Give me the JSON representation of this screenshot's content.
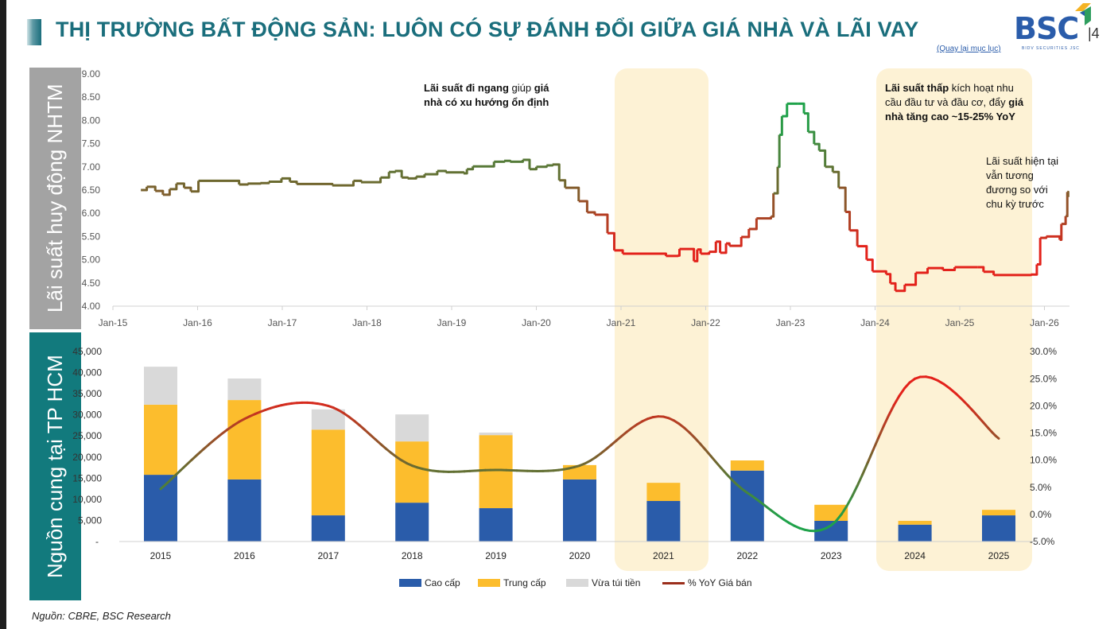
{
  "header": {
    "title": "THỊ TRƯỜNG BẤT ĐỘNG SẢN: LUÔN CÓ SỰ ĐÁNH ĐỔI GIỮA GIÁ NHÀ VÀ LÃI VAY",
    "logo_text": "BSC",
    "logo_sub": "BIDV SECURITIES JSC",
    "page_number": "|4",
    "back_link": "(Quay lại mục lục)"
  },
  "side_labels": {
    "top": "Lãi suất huy động NHTM",
    "bottom": "Nguồn cung tại TP HCM"
  },
  "annotations": {
    "a1_bold": "Lãi suất đi ngang",
    "a1_rest1": " giúp",
    "a1_bold2": "giá nhà có xu hướng ổn định",
    "a2_bold": "Lãi suất thấp",
    "a2_rest": " kích hoạt nhu cầu đầu tư và đầu cơ, đẩy ",
    "a2_bold2": "giá nhà tăng cao ~15-25% YoY",
    "a3": "Lãi suất hiện tại vẫn tương đương so với chu kỳ trước"
  },
  "source": "Nguồn: CBRE, BSC Research",
  "colors": {
    "title": "#1a6e7c",
    "cao_cap": "#2a5caa",
    "trung_cap": "#fcbd2d",
    "vua_tui_tien": "#d9d9d9",
    "highlight": "#fdf2d5",
    "red": "#e3221b",
    "olive": "#6b6a30",
    "green": "#1fa24a"
  },
  "chart_data": [
    {
      "type": "line",
      "title": "Lãi suất huy động NHTM",
      "ylabel": "Lãi suất huy động NHTM",
      "ylim": [
        4.0,
        9.0
      ],
      "yticks": [
        "4.00",
        "4.50",
        "5.00",
        "5.50",
        "6.00",
        "6.50",
        "7.00",
        "7.50",
        "8.00",
        "8.50",
        "9.00"
      ],
      "xticks": [
        "Jan-15",
        "Jan-16",
        "Jan-17",
        "Jan-18",
        "Jan-19",
        "Jan-20",
        "Jan-21",
        "Jan-22",
        "Jan-23",
        "Jan-24",
        "Jan-25",
        "Jan-26"
      ],
      "xlim": [
        2015.0,
        2026.3
      ],
      "highlights": [
        [
          2020.9,
          2022.0
        ],
        [
          2024.0,
          2025.85
        ]
      ],
      "series": [
        {
          "name": "Lãi suất huy động",
          "step": true,
          "points": [
            [
              2015.33,
              6.5
            ],
            [
              2015.4,
              6.57
            ],
            [
              2015.5,
              6.48
            ],
            [
              2015.59,
              6.4
            ],
            [
              2015.67,
              6.52
            ],
            [
              2015.75,
              6.64
            ],
            [
              2015.84,
              6.55
            ],
            [
              2015.92,
              6.47
            ],
            [
              2016.01,
              6.7
            ],
            [
              2016.49,
              6.62
            ],
            [
              2016.59,
              6.64
            ],
            [
              2016.74,
              6.65
            ],
            [
              2016.84,
              6.68
            ],
            [
              2016.99,
              6.75
            ],
            [
              2017.09,
              6.68
            ],
            [
              2017.17,
              6.63
            ],
            [
              2017.59,
              6.6
            ],
            [
              2017.84,
              6.7
            ],
            [
              2017.93,
              6.67
            ],
            [
              2018.16,
              6.77
            ],
            [
              2018.26,
              6.89
            ],
            [
              2018.33,
              6.91
            ],
            [
              2018.41,
              6.77
            ],
            [
              2018.48,
              6.75
            ],
            [
              2018.58,
              6.79
            ],
            [
              2018.68,
              6.84
            ],
            [
              2018.83,
              6.91
            ],
            [
              2018.93,
              6.88
            ],
            [
              2019.14,
              6.86
            ],
            [
              2019.18,
              6.95
            ],
            [
              2019.25,
              7.01
            ],
            [
              2019.5,
              7.11
            ],
            [
              2019.62,
              7.13
            ],
            [
              2019.69,
              7.11
            ],
            [
              2019.84,
              7.15
            ],
            [
              2019.92,
              6.95
            ],
            [
              2020.0,
              7.0
            ],
            [
              2020.12,
              7.03
            ],
            [
              2020.19,
              7.05
            ],
            [
              2020.27,
              6.71
            ],
            [
              2020.34,
              6.55
            ],
            [
              2020.5,
              6.26
            ],
            [
              2020.6,
              6.02
            ],
            [
              2020.69,
              5.97
            ],
            [
              2020.84,
              5.57
            ],
            [
              2020.92,
              5.2
            ],
            [
              2021.02,
              5.13
            ],
            [
              2021.31,
              5.13
            ],
            [
              2021.53,
              5.08
            ],
            [
              2021.67,
              5.09
            ],
            [
              2021.69,
              5.23
            ],
            [
              2021.85,
              5.23
            ],
            [
              2021.86,
              4.97
            ],
            [
              2021.9,
              5.22
            ],
            [
              2021.94,
              5.13
            ],
            [
              2022.04,
              5.17
            ],
            [
              2022.12,
              5.39
            ],
            [
              2022.17,
              5.15
            ],
            [
              2022.24,
              5.35
            ],
            [
              2022.28,
              5.3
            ],
            [
              2022.42,
              5.49
            ],
            [
              2022.51,
              5.66
            ],
            [
              2022.6,
              5.89
            ],
            [
              2022.77,
              5.93
            ],
            [
              2022.8,
              6.43
            ],
            [
              2022.85,
              7.0
            ],
            [
              2022.87,
              7.69
            ],
            [
              2022.9,
              8.09
            ],
            [
              2022.96,
              8.36
            ],
            [
              2023.09,
              8.36
            ],
            [
              2023.16,
              8.15
            ],
            [
              2023.21,
              7.75
            ],
            [
              2023.28,
              7.49
            ],
            [
              2023.34,
              7.35
            ],
            [
              2023.41,
              7.0
            ],
            [
              2023.5,
              6.89
            ],
            [
              2023.57,
              6.55
            ],
            [
              2023.65,
              6.03
            ],
            [
              2023.7,
              5.63
            ],
            [
              2023.79,
              5.29
            ],
            [
              2023.9,
              5.0
            ],
            [
              2023.97,
              4.75
            ],
            [
              2024.13,
              4.69
            ],
            [
              2024.18,
              4.49
            ],
            [
              2024.24,
              4.33
            ],
            [
              2024.35,
              4.46
            ],
            [
              2024.48,
              4.72
            ],
            [
              2024.62,
              4.82
            ],
            [
              2024.8,
              4.78
            ],
            [
              2024.94,
              4.84
            ],
            [
              2025.21,
              4.84
            ],
            [
              2025.28,
              4.74
            ],
            [
              2025.4,
              4.67
            ],
            [
              2025.84,
              4.68
            ],
            [
              2025.91,
              4.9
            ],
            [
              2025.95,
              5.47
            ],
            [
              2026.02,
              5.5
            ],
            [
              2026.18,
              5.43
            ],
            [
              2026.2,
              5.77
            ],
            [
              2026.25,
              5.94
            ],
            [
              2026.27,
              6.46
            ],
            [
              2026.28,
              6.35
            ]
          ]
        }
      ]
    },
    {
      "type": "bar",
      "stacked": true,
      "title": "Nguồn cung tại TP HCM",
      "categories": [
        "2015",
        "2016",
        "2017",
        "2018",
        "2019",
        "2020",
        "2021",
        "2022",
        "2023",
        "2024",
        "2025"
      ],
      "ylim": [
        0,
        45000
      ],
      "yticks": [
        "-",
        "5,000",
        "10,000",
        "15,000",
        "20,000",
        "25,000",
        "30,000",
        "35,000",
        "40,000",
        "45,000"
      ],
      "y2lim": [
        -5,
        30
      ],
      "y2ticks": [
        "-5.0%",
        "0.0%",
        "5.0%",
        "10.0%",
        "15.0%",
        "20.0%",
        "25.0%",
        "30.0%"
      ],
      "highlights": [
        "2021",
        "2024-2025"
      ],
      "series": [
        {
          "name": "Cao cấp",
          "values": [
            15800,
            14700,
            6200,
            9200,
            7900,
            14700,
            9600,
            16800,
            4900,
            4000,
            6200
          ]
        },
        {
          "name": "Trung cấp",
          "values": [
            16600,
            18800,
            20300,
            14500,
            17300,
            3400,
            4300,
            2400,
            3800,
            900,
            1300
          ]
        },
        {
          "name": "Vừa túi tiền",
          "values": [
            9000,
            5100,
            4800,
            6400,
            600,
            0,
            0,
            0,
            0,
            0,
            0
          ]
        },
        {
          "name": "% YoY Giá bán",
          "axis": "right",
          "type": "line",
          "values": [
            4.7,
            17.6,
            20.0,
            9.0,
            8.2,
            9.0,
            18.0,
            4.0,
            -2.0,
            25.0,
            14.0
          ]
        }
      ],
      "legend": "bottom"
    }
  ]
}
